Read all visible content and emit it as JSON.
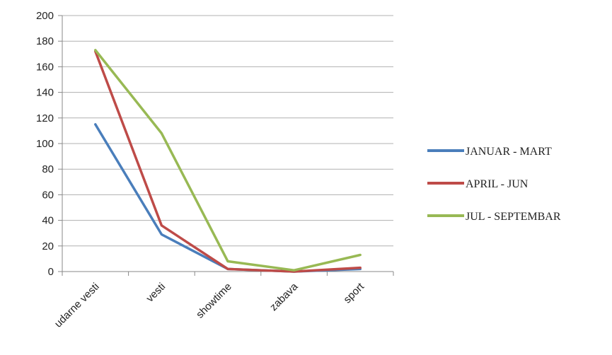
{
  "chart_data": {
    "type": "line",
    "title": "",
    "xlabel": "",
    "ylabel": "",
    "categories": [
      "udarne vesti",
      "vesti",
      "showtime",
      "zabava",
      "sport"
    ],
    "ylim": [
      0,
      200
    ],
    "yticks": [
      0,
      20,
      40,
      60,
      80,
      100,
      120,
      140,
      160,
      180,
      200
    ],
    "grid": true,
    "legend_position": "right",
    "series": [
      {
        "name": "JANUAR - MART",
        "values": [
          115,
          29,
          2,
          0,
          2
        ],
        "color": "#4a7ebb"
      },
      {
        "name": "APRIL - JUN",
        "values": [
          172,
          36,
          2,
          0,
          3
        ],
        "color": "#be4b48"
      },
      {
        "name": "JUL - SEPTEMBAR",
        "values": [
          173,
          108,
          8,
          1,
          13
        ],
        "color": "#98b954"
      }
    ]
  }
}
